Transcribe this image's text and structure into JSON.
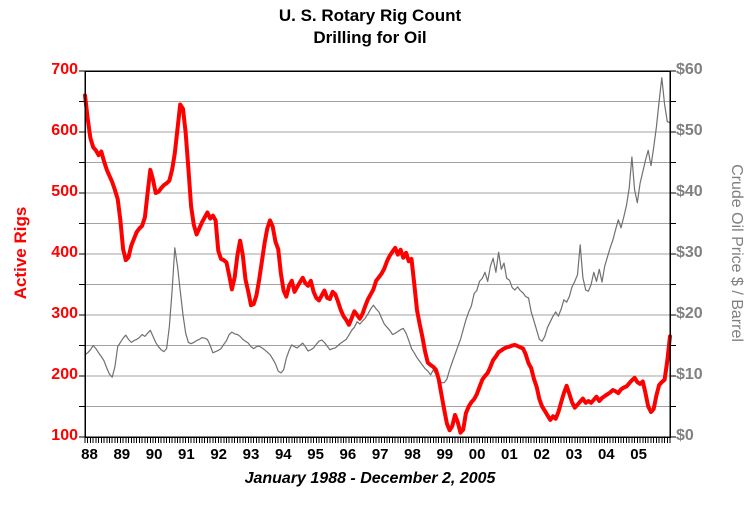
{
  "chart_data": {
    "type": "line",
    "title": "U. S. Rotary Rig Count",
    "subtitle": "Drilling for Oil",
    "xlabel": "January 1988 - December 2, 2005",
    "x_tick_labels": [
      "88",
      "89",
      "90",
      "91",
      "92",
      "93",
      "94",
      "95",
      "96",
      "97",
      "98",
      "99",
      "00",
      "01",
      "02",
      "03",
      "04",
      "05"
    ],
    "x_range_years": [
      1988,
      2005.92
    ],
    "grid": "horizontal-every-50-units",
    "legend": "none",
    "left_axis": {
      "label": "Active Rigs",
      "color": "#ff0000",
      "min": 100,
      "max": 700,
      "major_tick_step": 100,
      "minor_tick_step": 50,
      "tick_labels": [
        "700",
        "600",
        "500",
        "400",
        "300",
        "200",
        "100"
      ],
      "tick_values": [
        700,
        600,
        500,
        400,
        300,
        200,
        100
      ]
    },
    "right_axis": {
      "label": "Crude Oil Price $ / Barrel",
      "color": "#808080",
      "min": 0,
      "max": 60,
      "major_tick_step": 10,
      "minor_tick_step": 5,
      "tick_labels": [
        "$60",
        "$50",
        "$40",
        "$30",
        "$20",
        "$10",
        "$0"
      ],
      "tick_values": [
        60,
        50,
        40,
        30,
        20,
        10,
        0
      ]
    },
    "series": [
      {
        "name": "crude-oil-price",
        "axis": "right",
        "color": "#707070",
        "line_width": 1.2,
        "start": "1988-01",
        "step": "monthly",
        "values": [
          13.5,
          13.8,
          14.3,
          15,
          14.5,
          13.8,
          13.2,
          12.5,
          11.3,
          10.3,
          9.8,
          11.5,
          14.8,
          15.5,
          16.2,
          16.7,
          16,
          15.5,
          15.8,
          16,
          16.3,
          16.8,
          16.5,
          17,
          17.5,
          16.5,
          15.5,
          14.8,
          14.3,
          14,
          14.5,
          18,
          24,
          31,
          28,
          24,
          20,
          17,
          15.5,
          15.3,
          15.5,
          15.8,
          16,
          16.3,
          16.2,
          16,
          15,
          13.8,
          14,
          14.2,
          14.5,
          15.2,
          15.8,
          16.8,
          17.2,
          16.9,
          16.8,
          16.5,
          16,
          15.7,
          15.4,
          14.8,
          14.5,
          14.8,
          14.9,
          14.6,
          14.3,
          13.9,
          13.5,
          12.8,
          12,
          10.8,
          10.5,
          11,
          12.9,
          14.2,
          15.1,
          14.8,
          14.6,
          15,
          15.4,
          14.8,
          14.1,
          14.3,
          14.6,
          15.2,
          15.7,
          15.9,
          15.5,
          14.9,
          14.3,
          14.5,
          14.6,
          15,
          15.4,
          15.7,
          16,
          16.7,
          17.5,
          18,
          18.9,
          18.5,
          19,
          19.5,
          20.2,
          21,
          21.6,
          21,
          20.5,
          19.5,
          18.5,
          18,
          17.5,
          16.8,
          17,
          17.3,
          17.6,
          17.8,
          17,
          15.8,
          14.5,
          13.8,
          13,
          12.4,
          11.8,
          11.2,
          10.8,
          10.2,
          11,
          10.3,
          9.5,
          8.9,
          8.9,
          9.5,
          11,
          12.3,
          13.5,
          14.8,
          16,
          17.6,
          19.2,
          20.5,
          21.5,
          23.5,
          24,
          25.5,
          26,
          27,
          25.5,
          28,
          29.3,
          27,
          30.3,
          27.5,
          28.5,
          26,
          25.7,
          24.5,
          24.1,
          24.6,
          24,
          23.6,
          23,
          22.8,
          20.5,
          19,
          17.5,
          16,
          15.7,
          16.5,
          18,
          18.9,
          19.8,
          20.5,
          19.8,
          21,
          22.5,
          22.1,
          23,
          24.6,
          25.5,
          26.6,
          31.5,
          26.1,
          24.1,
          23.9,
          25,
          27,
          25.5,
          27.5,
          25.4,
          28,
          29.5,
          31,
          32.3,
          34,
          35.6,
          34.3,
          36,
          38,
          40.8,
          45.9,
          40.5,
          38.4,
          41.6,
          43.5,
          45.4,
          47,
          44.5,
          47.5,
          50.8,
          55,
          58.9,
          54.5,
          51.7,
          51.5
        ]
      },
      {
        "name": "active-rigs",
        "axis": "left",
        "color": "#ff0000",
        "line_width": 4,
        "start": "1988-01",
        "step": "monthly",
        "values": [
          660,
          622,
          590,
          575,
          570,
          562,
          568,
          552,
          538,
          528,
          518,
          505,
          490,
          455,
          408,
          390,
          395,
          414,
          425,
          436,
          442,
          446,
          460,
          500,
          538,
          522,
          500,
          502,
          508,
          513,
          516,
          520,
          538,
          565,
          605,
          645,
          638,
          598,
          540,
          478,
          448,
          432,
          442,
          452,
          460,
          468,
          458,
          463,
          455,
          405,
          392,
          390,
          386,
          365,
          342,
          362,
          398,
          422,
          398,
          358,
          338,
          316,
          318,
          332,
          357,
          388,
          418,
          442,
          455,
          445,
          420,
          408,
          368,
          340,
          330,
          348,
          356,
          338,
          346,
          354,
          361,
          352,
          348,
          356,
          338,
          328,
          324,
          332,
          340,
          328,
          326,
          338,
          334,
          322,
          308,
          298,
          292,
          284,
          295,
          306,
          300,
          294,
          302,
          315,
          326,
          334,
          342,
          356,
          362,
          368,
          376,
          388,
          397,
          404,
          410,
          399,
          407,
          394,
          402,
          388,
          392,
          352,
          308,
          285,
          264,
          240,
          222,
          218,
          215,
          210,
          195,
          170,
          145,
          122,
          111,
          118,
          136,
          124,
          107,
          112,
          139,
          150,
          157,
          162,
          170,
          182,
          194,
          200,
          205,
          215,
          226,
          232,
          239,
          242,
          245,
          247,
          248,
          250,
          251,
          249,
          247,
          245,
          235,
          221,
          213,
          195,
          182,
          162,
          150,
          143,
          135,
          128,
          134,
          130,
          141,
          157,
          172,
          184,
          171,
          157,
          148,
          153,
          158,
          163,
          156,
          159,
          156,
          161,
          166,
          159,
          164,
          167,
          170,
          173,
          177,
          175,
          172,
          178,
          181,
          183,
          188,
          193,
          197,
          190,
          187,
          191,
          172,
          150,
          141,
          146,
          168,
          185,
          190,
          194,
          225,
          265
        ]
      }
    ]
  }
}
